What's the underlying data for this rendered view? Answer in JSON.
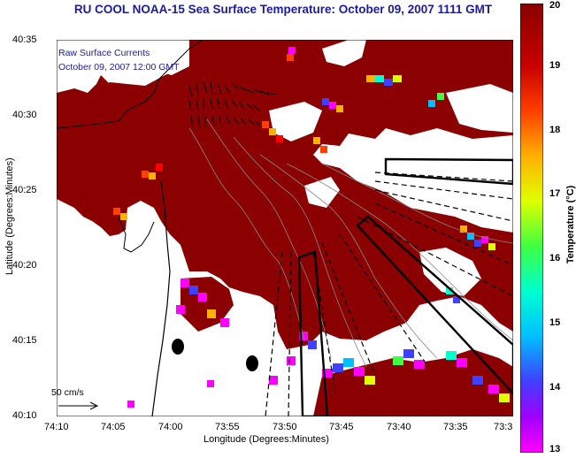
{
  "title": "RU COOL  NOAA-15  Sea Surface Temperature:  October 09, 2007 1111 GMT",
  "legend": {
    "line1": "Raw Surface Currents",
    "line2": "October 09, 2007 12:00 GMT"
  },
  "scale_label": "50 cm/s",
  "axes": {
    "xlabel": "Longitude (Degrees:Minutes)",
    "ylabel": "Latitude (Degrees:Minutes)",
    "xticks": [
      "74:10",
      "74:05",
      "74:00",
      "73:55",
      "73:50",
      "73:45",
      "73:40",
      "73:35",
      "73:3"
    ],
    "yticks": [
      "40:35",
      "40:30",
      "40:25",
      "40:20",
      "40:15",
      "40:10"
    ]
  },
  "colorbar": {
    "label": "Temperature (°C)",
    "ticks": [
      "20",
      "19",
      "18",
      "17",
      "16",
      "15",
      "14",
      "13"
    ],
    "range": [
      13,
      20
    ],
    "colors": [
      "#ff00ff",
      "#4040ff",
      "#00c0ff",
      "#00ffd0",
      "#40ff40",
      "#e0ff00",
      "#ffb000",
      "#ff4000",
      "#c80000",
      "#8b0000"
    ]
  },
  "colors": {
    "sst_warm": "#8b0000",
    "land": "#ffffff",
    "title": "#1a1aa6"
  }
}
